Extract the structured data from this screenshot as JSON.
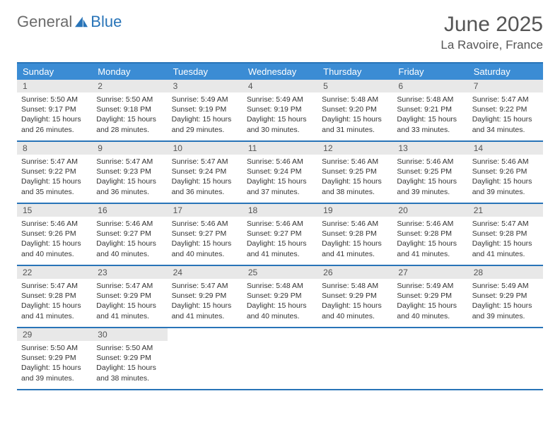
{
  "logo": {
    "text_a": "General",
    "text_b": "Blue"
  },
  "title": "June 2025",
  "location": "La Ravoire, France",
  "colors": {
    "header_bg": "#3b8cd4",
    "header_text": "#ffffff",
    "rule": "#2874b8",
    "daynum_bg": "#e8e8e8",
    "body_text": "#333333",
    "title_text": "#555555"
  },
  "days_of_week": [
    "Sunday",
    "Monday",
    "Tuesday",
    "Wednesday",
    "Thursday",
    "Friday",
    "Saturday"
  ],
  "weeks": [
    [
      {
        "n": "1",
        "sr": "5:50 AM",
        "ss": "9:17 PM",
        "dl": "15 hours and 26 minutes."
      },
      {
        "n": "2",
        "sr": "5:50 AM",
        "ss": "9:18 PM",
        "dl": "15 hours and 28 minutes."
      },
      {
        "n": "3",
        "sr": "5:49 AM",
        "ss": "9:19 PM",
        "dl": "15 hours and 29 minutes."
      },
      {
        "n": "4",
        "sr": "5:49 AM",
        "ss": "9:19 PM",
        "dl": "15 hours and 30 minutes."
      },
      {
        "n": "5",
        "sr": "5:48 AM",
        "ss": "9:20 PM",
        "dl": "15 hours and 31 minutes."
      },
      {
        "n": "6",
        "sr": "5:48 AM",
        "ss": "9:21 PM",
        "dl": "15 hours and 33 minutes."
      },
      {
        "n": "7",
        "sr": "5:47 AM",
        "ss": "9:22 PM",
        "dl": "15 hours and 34 minutes."
      }
    ],
    [
      {
        "n": "8",
        "sr": "5:47 AM",
        "ss": "9:22 PM",
        "dl": "15 hours and 35 minutes."
      },
      {
        "n": "9",
        "sr": "5:47 AM",
        "ss": "9:23 PM",
        "dl": "15 hours and 36 minutes."
      },
      {
        "n": "10",
        "sr": "5:47 AM",
        "ss": "9:24 PM",
        "dl": "15 hours and 36 minutes."
      },
      {
        "n": "11",
        "sr": "5:46 AM",
        "ss": "9:24 PM",
        "dl": "15 hours and 37 minutes."
      },
      {
        "n": "12",
        "sr": "5:46 AM",
        "ss": "9:25 PM",
        "dl": "15 hours and 38 minutes."
      },
      {
        "n": "13",
        "sr": "5:46 AM",
        "ss": "9:25 PM",
        "dl": "15 hours and 39 minutes."
      },
      {
        "n": "14",
        "sr": "5:46 AM",
        "ss": "9:26 PM",
        "dl": "15 hours and 39 minutes."
      }
    ],
    [
      {
        "n": "15",
        "sr": "5:46 AM",
        "ss": "9:26 PM",
        "dl": "15 hours and 40 minutes."
      },
      {
        "n": "16",
        "sr": "5:46 AM",
        "ss": "9:27 PM",
        "dl": "15 hours and 40 minutes."
      },
      {
        "n": "17",
        "sr": "5:46 AM",
        "ss": "9:27 PM",
        "dl": "15 hours and 40 minutes."
      },
      {
        "n": "18",
        "sr": "5:46 AM",
        "ss": "9:27 PM",
        "dl": "15 hours and 41 minutes."
      },
      {
        "n": "19",
        "sr": "5:46 AM",
        "ss": "9:28 PM",
        "dl": "15 hours and 41 minutes."
      },
      {
        "n": "20",
        "sr": "5:46 AM",
        "ss": "9:28 PM",
        "dl": "15 hours and 41 minutes."
      },
      {
        "n": "21",
        "sr": "5:47 AM",
        "ss": "9:28 PM",
        "dl": "15 hours and 41 minutes."
      }
    ],
    [
      {
        "n": "22",
        "sr": "5:47 AM",
        "ss": "9:28 PM",
        "dl": "15 hours and 41 minutes."
      },
      {
        "n": "23",
        "sr": "5:47 AM",
        "ss": "9:29 PM",
        "dl": "15 hours and 41 minutes."
      },
      {
        "n": "24",
        "sr": "5:47 AM",
        "ss": "9:29 PM",
        "dl": "15 hours and 41 minutes."
      },
      {
        "n": "25",
        "sr": "5:48 AM",
        "ss": "9:29 PM",
        "dl": "15 hours and 40 minutes."
      },
      {
        "n": "26",
        "sr": "5:48 AM",
        "ss": "9:29 PM",
        "dl": "15 hours and 40 minutes."
      },
      {
        "n": "27",
        "sr": "5:49 AM",
        "ss": "9:29 PM",
        "dl": "15 hours and 40 minutes."
      },
      {
        "n": "28",
        "sr": "5:49 AM",
        "ss": "9:29 PM",
        "dl": "15 hours and 39 minutes."
      }
    ],
    [
      {
        "n": "29",
        "sr": "5:50 AM",
        "ss": "9:29 PM",
        "dl": "15 hours and 39 minutes."
      },
      {
        "n": "30",
        "sr": "5:50 AM",
        "ss": "9:29 PM",
        "dl": "15 hours and 38 minutes."
      },
      null,
      null,
      null,
      null,
      null
    ]
  ],
  "labels": {
    "sunrise": "Sunrise:",
    "sunset": "Sunset:",
    "daylight": "Daylight:"
  }
}
